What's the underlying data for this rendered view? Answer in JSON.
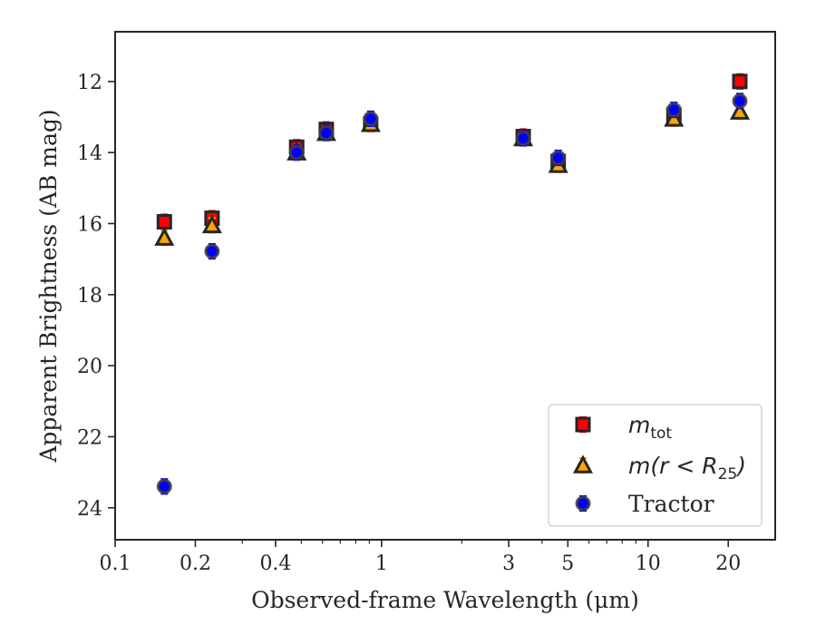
{
  "chart_data": {
    "type": "scatter",
    "title": "",
    "xlabel": "Observed-frame Wavelength (μm)",
    "ylabel": "Apparent Brightness (AB mag)",
    "xscale": "log",
    "xlim": [
      0.1,
      30
    ],
    "ylim": [
      24.9,
      10.6
    ],
    "y_inverted": true,
    "grid": false,
    "legend_placement": "bottom-right",
    "x_ticks": [
      0.1,
      0.2,
      0.4,
      1,
      3,
      5,
      10,
      20
    ],
    "x_tick_labels": [
      "0.1",
      "0.2",
      "0.4",
      "1",
      "3",
      "5",
      "10",
      "20"
    ],
    "y_ticks": [
      12,
      14,
      16,
      18,
      20,
      22,
      24
    ],
    "y_tick_labels": [
      "12",
      "14",
      "16",
      "18",
      "20",
      "22",
      "24"
    ],
    "series": [
      {
        "key": "mtot",
        "name": "m_tot",
        "legend_main": "m",
        "legend_sub": "tot",
        "marker": "square",
        "face_color": "#ff0000",
        "edge_color": "#262626",
        "error_color": "#ff0000",
        "x": [
          0.153,
          0.231,
          0.48,
          0.62,
          0.91,
          3.4,
          4.6,
          12.5,
          22.1
        ],
        "y": [
          15.95,
          15.85,
          13.85,
          13.35,
          13.2,
          13.55,
          14.25,
          12.95,
          12.0
        ]
      },
      {
        "key": "r25",
        "name": "m(r < R_25)",
        "legend_main": "m(r < R",
        "legend_sub": "25",
        "legend_tail": ")",
        "marker": "triangle",
        "face_color": "#ffa500",
        "edge_color": "#262626",
        "error_color": "#ffa500",
        "x": [
          0.153,
          0.231,
          0.48,
          0.62,
          0.91,
          3.4,
          4.6,
          12.5,
          22.1
        ],
        "y": [
          16.4,
          16.05,
          14.0,
          13.45,
          13.2,
          13.6,
          14.35,
          13.05,
          12.85
        ]
      },
      {
        "key": "tractor",
        "name": "Tractor",
        "legend_main": "Tractor",
        "marker": "circle",
        "face_color": "#0000ff",
        "edge_color": "#404040",
        "error_color": "#0000ff",
        "x": [
          0.153,
          0.231,
          0.48,
          0.62,
          0.91,
          3.4,
          4.6,
          12.5,
          22.1
        ],
        "y": [
          23.4,
          16.78,
          14.0,
          13.45,
          13.05,
          13.6,
          14.15,
          12.8,
          12.55
        ]
      }
    ]
  }
}
